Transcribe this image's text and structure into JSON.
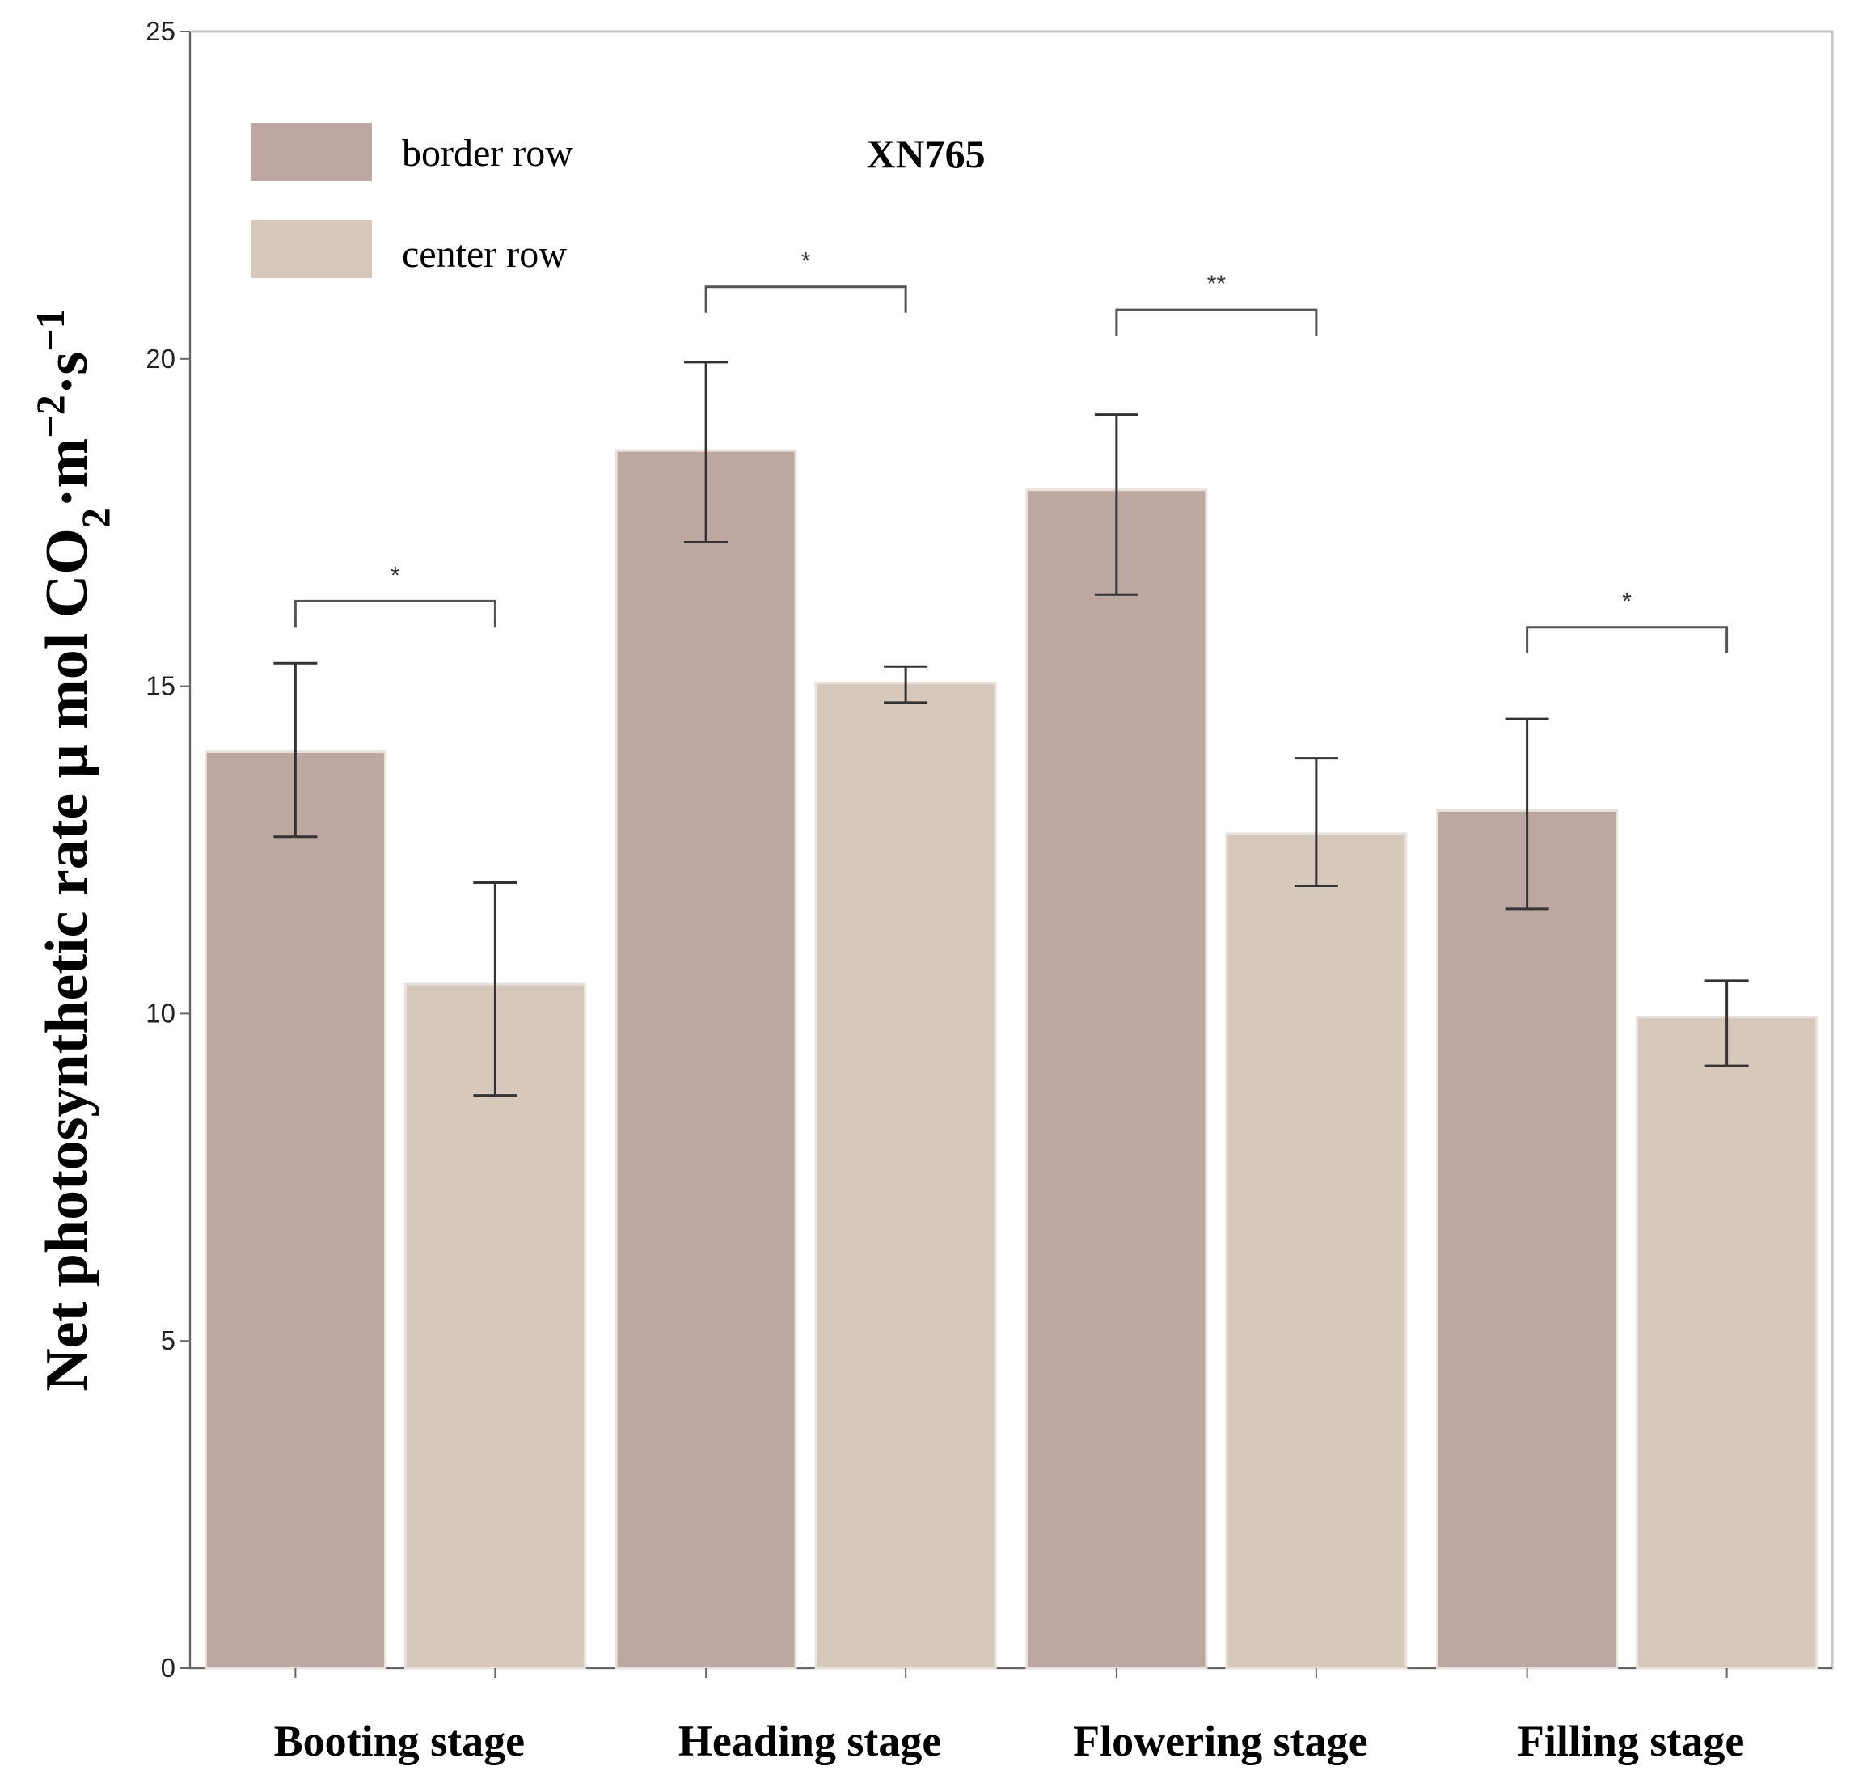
{
  "chart_data": {
    "type": "bar",
    "title": "XN765",
    "ylabel": {
      "main": "Net photosynthetic rate μ mol CO",
      "sub": "2",
      "mid": "·m",
      "sup1": "−2",
      "tail": "·s",
      "sup2": "−1"
    },
    "xlabel": "",
    "ylim": [
      0,
      25
    ],
    "yticks": [
      "0",
      "5",
      "10",
      "15",
      "20",
      "25"
    ],
    "categories": [
      "Booting stage",
      "Heading stage",
      "Flowering stage",
      "Filling stage"
    ],
    "series": [
      {
        "name": "border row",
        "color": "#bda7a1",
        "values": [
          14.0,
          18.6,
          18.0,
          13.1
        ],
        "err_low": [
          12.7,
          17.2,
          16.4,
          11.6
        ],
        "err_high": [
          15.35,
          19.95,
          19.15,
          14.5
        ]
      },
      {
        "name": "center row",
        "color": "#d6c9bc",
        "values": [
          10.45,
          15.05,
          12.75,
          9.95
        ],
        "err_low": [
          8.75,
          14.75,
          11.95,
          9.2
        ],
        "err_high": [
          12.0,
          15.3,
          13.9,
          10.5
        ]
      }
    ],
    "significance": [
      {
        "category": "Booting stage",
        "label": "*",
        "y": 16.3
      },
      {
        "category": "Heading stage",
        "label": "*",
        "y": 21.1
      },
      {
        "category": "Flowering stage",
        "label": "**",
        "y": 20.75
      },
      {
        "category": "Filling stage",
        "label": "*",
        "y": 15.9
      }
    ],
    "legend_position": "top-left",
    "grid": false
  }
}
